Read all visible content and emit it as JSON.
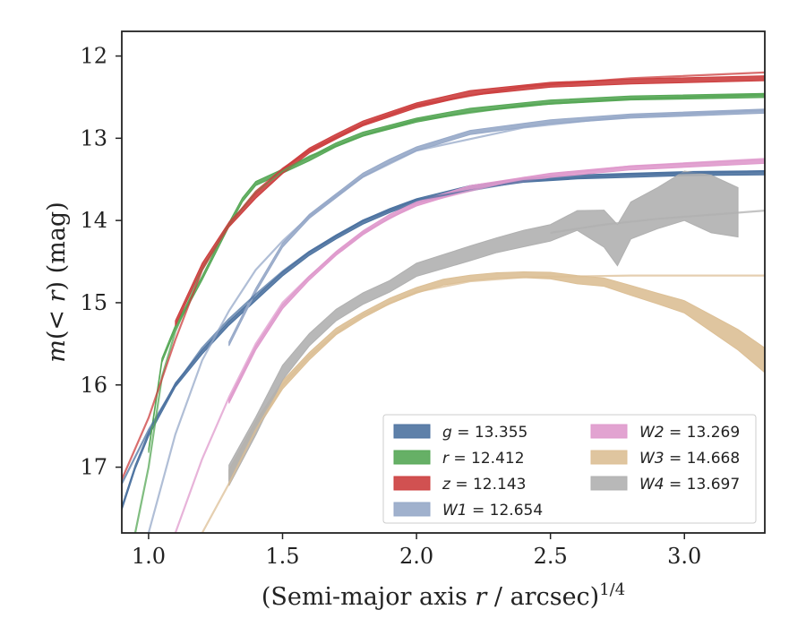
{
  "chart_data": {
    "type": "line",
    "xlabel_main": "(Semi-major axis ",
    "xlabel_var": "r",
    "xlabel_rest": " / arcsec)",
    "xlabel_sup": "1/4",
    "ylabel_m": "m",
    "ylabel_open": "(< ",
    "ylabel_r": "r",
    "ylabel_close": ") (mag)",
    "xlim": [
      0.9,
      3.3
    ],
    "ylim": [
      17.8,
      11.7
    ],
    "y_inverted": true,
    "x_ticks": [
      1.0,
      1.5,
      2.0,
      2.5,
      3.0
    ],
    "x_tick_labels": [
      "1.0",
      "1.5",
      "2.0",
      "2.5",
      "3.0"
    ],
    "y_ticks": [
      12,
      13,
      14,
      15,
      16,
      17
    ],
    "y_tick_labels": [
      "12",
      "13",
      "14",
      "15",
      "16",
      "17"
    ],
    "grid": false,
    "legend_position": "lower-right",
    "legend": [
      {
        "band": "g",
        "value": "13.355",
        "color": "#4c72a0"
      },
      {
        "band": "r",
        "value": "12.412",
        "color": "#55a755"
      },
      {
        "band": "z",
        "value": "12.143",
        "color": "#cc3e3e"
      },
      {
        "band": "W1",
        "value": "12.654",
        "color": "#96a8c8"
      },
      {
        "band": "W2",
        "value": "13.269",
        "color": "#df99cc"
      },
      {
        "band": "W3",
        "value": "14.668",
        "color": "#dcbf95"
      },
      {
        "band": "W4",
        "value": "13.697",
        "color": "#b0b0b0"
      }
    ],
    "series": [
      {
        "band": "g",
        "color": "#4c72a0",
        "kind": "band",
        "x": [
          0.9,
          0.95,
          1.0,
          1.1,
          1.2,
          1.3,
          1.4,
          1.5,
          1.6,
          1.7,
          1.8,
          1.9,
          2.0,
          2.2,
          2.4,
          2.6,
          2.8,
          3.0,
          3.3
        ],
        "y": [
          17.5,
          17.0,
          16.6,
          16.0,
          15.6,
          15.25,
          14.95,
          14.65,
          14.4,
          14.2,
          14.02,
          13.88,
          13.76,
          13.6,
          13.51,
          13.47,
          13.45,
          13.43,
          13.42
        ],
        "width": 0.05
      },
      {
        "band": "g",
        "color": "#4c72a0",
        "kind": "model",
        "x": [
          0.9,
          1.0,
          1.1,
          1.2,
          1.3,
          1.4,
          1.5,
          1.6,
          1.8,
          2.0,
          2.4,
          2.8,
          3.3
        ],
        "y": [
          17.2,
          16.55,
          16.0,
          15.55,
          15.2,
          14.9,
          14.62,
          14.38,
          14.0,
          13.75,
          13.52,
          13.44,
          13.4
        ]
      },
      {
        "band": "r",
        "color": "#55a755",
        "kind": "band",
        "x": [
          1.0,
          1.05,
          1.1,
          1.2,
          1.3,
          1.35,
          1.4,
          1.5,
          1.6,
          1.7,
          1.8,
          2.0,
          2.2,
          2.5,
          2.8,
          3.3
        ],
        "y": [
          16.8,
          15.7,
          15.3,
          14.7,
          14.05,
          13.75,
          13.55,
          13.4,
          13.25,
          13.08,
          12.95,
          12.78,
          12.66,
          12.56,
          12.51,
          12.48
        ],
        "width": 0.05
      },
      {
        "band": "r",
        "color": "#55a755",
        "kind": "model",
        "x": [
          0.95,
          1.0,
          1.05,
          1.1,
          1.2,
          1.3,
          1.4,
          1.5,
          1.6,
          1.8,
          2.0,
          2.4,
          2.8,
          3.3
        ],
        "y": [
          17.8,
          17.0,
          15.9,
          15.35,
          14.6,
          14.05,
          13.65,
          13.4,
          13.22,
          12.97,
          12.78,
          12.6,
          12.52,
          12.47
        ]
      },
      {
        "band": "z",
        "color": "#cc3e3e",
        "kind": "band",
        "x": [
          1.1,
          1.2,
          1.3,
          1.4,
          1.5,
          1.6,
          1.7,
          1.8,
          2.0,
          2.2,
          2.5,
          2.8,
          3.3
        ],
        "y": [
          15.25,
          14.55,
          14.05,
          13.7,
          13.4,
          13.15,
          12.98,
          12.82,
          12.6,
          12.45,
          12.35,
          12.31,
          12.27
        ],
        "width": 0.06
      },
      {
        "band": "z",
        "color": "#cc3e3e",
        "kind": "model",
        "x": [
          0.9,
          1.0,
          1.1,
          1.2,
          1.3,
          1.4,
          1.5,
          1.6,
          1.8,
          2.0,
          2.4,
          2.8,
          3.3
        ],
        "y": [
          17.15,
          16.4,
          15.45,
          14.6,
          14.05,
          13.65,
          13.37,
          13.15,
          12.83,
          12.6,
          12.37,
          12.27,
          12.2
        ]
      },
      {
        "band": "W1",
        "color": "#96a8c8",
        "kind": "band",
        "x": [
          1.3,
          1.4,
          1.5,
          1.6,
          1.7,
          1.8,
          1.9,
          2.0,
          2.2,
          2.5,
          2.8,
          3.3
        ],
        "y": [
          15.5,
          14.85,
          14.3,
          13.95,
          13.7,
          13.45,
          13.28,
          13.13,
          12.93,
          12.8,
          12.73,
          12.67
        ],
        "width": 0.05
      },
      {
        "band": "W1",
        "color": "#96a8c8",
        "kind": "model",
        "x": [
          1.0,
          1.1,
          1.2,
          1.3,
          1.4,
          1.5,
          1.6,
          1.7,
          1.8,
          2.0,
          2.4,
          2.8,
          3.3
        ],
        "y": [
          17.8,
          16.6,
          15.7,
          15.1,
          14.6,
          14.25,
          13.95,
          13.7,
          13.47,
          13.15,
          12.87,
          12.73,
          12.66
        ]
      },
      {
        "band": "W2",
        "color": "#df99cc",
        "kind": "band",
        "x": [
          1.3,
          1.4,
          1.5,
          1.6,
          1.7,
          1.8,
          1.9,
          2.0,
          2.2,
          2.5,
          2.8,
          3.3
        ],
        "y": [
          16.2,
          15.55,
          15.05,
          14.7,
          14.4,
          14.15,
          13.95,
          13.8,
          13.6,
          13.45,
          13.36,
          13.28
        ],
        "width": 0.05
      },
      {
        "band": "W2",
        "color": "#df99cc",
        "kind": "model",
        "x": [
          1.1,
          1.2,
          1.3,
          1.4,
          1.5,
          1.6,
          1.7,
          1.8,
          2.0,
          2.4,
          2.8,
          3.3
        ],
        "y": [
          17.8,
          16.9,
          16.15,
          15.5,
          15.0,
          14.68,
          14.4,
          14.15,
          13.8,
          13.48,
          13.34,
          13.25
        ]
      },
      {
        "band": "W3",
        "color": "#dcbf95",
        "kind": "band",
        "x": [
          1.3,
          1.4,
          1.5,
          1.6,
          1.7,
          1.8,
          1.9,
          2.0,
          2.1,
          2.2,
          2.3,
          2.4,
          2.5,
          2.6,
          2.7,
          2.8,
          2.9,
          3.0,
          3.1,
          3.2,
          3.3
        ],
        "y": [
          17.1,
          16.5,
          16.0,
          15.65,
          15.35,
          15.15,
          14.98,
          14.85,
          14.75,
          14.7,
          14.67,
          14.66,
          14.67,
          14.72,
          14.75,
          14.85,
          14.95,
          15.05,
          15.25,
          15.45,
          15.7
        ],
        "width": [
          0.14,
          0.12,
          0.1,
          0.09,
          0.08,
          0.07,
          0.07,
          0.07,
          0.07,
          0.07,
          0.07,
          0.07,
          0.08,
          0.1,
          0.1,
          0.12,
          0.13,
          0.15,
          0.2,
          0.25,
          0.3
        ]
      },
      {
        "band": "W3",
        "color": "#dcbf95",
        "kind": "model",
        "x": [
          1.2,
          1.3,
          1.4,
          1.5,
          1.6,
          1.7,
          1.8,
          2.0,
          2.2,
          2.4,
          2.6,
          2.8,
          3.0,
          3.3
        ],
        "y": [
          17.8,
          17.2,
          16.55,
          16.0,
          15.65,
          15.37,
          15.15,
          14.87,
          14.74,
          14.69,
          14.68,
          14.67,
          14.67,
          14.67
        ]
      },
      {
        "band": "W4",
        "color": "#b0b0b0",
        "kind": "band",
        "x": [
          1.3,
          1.4,
          1.5,
          1.6,
          1.7,
          1.8,
          1.9,
          2.0,
          2.1,
          2.2,
          2.3,
          2.4,
          2.5,
          2.6,
          2.7,
          2.75,
          2.8,
          2.9,
          3.0,
          3.1,
          3.2
        ],
        "y": [
          17.1,
          16.5,
          15.85,
          15.45,
          15.15,
          14.95,
          14.8,
          14.6,
          14.5,
          14.4,
          14.3,
          14.22,
          14.15,
          14.0,
          14.1,
          14.3,
          14.0,
          13.85,
          13.7,
          13.8,
          13.9
        ],
        "width": [
          0.25,
          0.22,
          0.18,
          0.15,
          0.14,
          0.14,
          0.14,
          0.16,
          0.17,
          0.18,
          0.18,
          0.2,
          0.2,
          0.24,
          0.45,
          0.5,
          0.45,
          0.5,
          0.6,
          0.7,
          0.6
        ]
      },
      {
        "band": "W4",
        "color": "#b0b0b0",
        "kind": "model",
        "x": [
          2.5,
          2.7,
          2.9,
          3.1,
          3.3
        ],
        "y": [
          14.15,
          14.05,
          13.98,
          13.93,
          13.88
        ]
      }
    ]
  }
}
